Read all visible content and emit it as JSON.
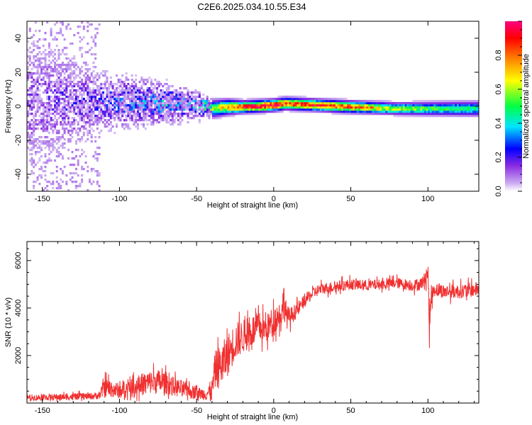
{
  "title": "C2E6.2025.034.10.55.E34",
  "chart_data": [
    {
      "type": "heatmap",
      "xlabel": "Height of straight line (km)",
      "ylabel": "Frequency (Hz)",
      "xlim": [
        -160,
        133
      ],
      "ylim": [
        -50,
        50
      ],
      "xticks": [
        -150,
        -100,
        -50,
        0,
        50,
        100
      ],
      "yticks": [
        -40,
        -20,
        0,
        20,
        40
      ],
      "colorbar": {
        "label": "Normalized spectral amplitude",
        "range": [
          0,
          1
        ],
        "ticks": [
          0.0,
          0.2,
          0.4,
          0.6,
          0.8
        ],
        "colormap": [
          "#ffffff",
          "#c8a8f0",
          "#8a2be2",
          "#0000ff",
          "#00e5ff",
          "#00ff44",
          "#ffff00",
          "#ff8000",
          "#ff0000",
          "#ff0080"
        ]
      },
      "band_profile": [
        {
          "x": -160,
          "center": 2,
          "width": 48,
          "amplitude": 0.12
        },
        {
          "x": -115,
          "center": 2,
          "width": 22,
          "amplitude": 0.18
        },
        {
          "x": -100,
          "center": 2,
          "width": 18,
          "amplitude": 0.25
        },
        {
          "x": -70,
          "center": 1,
          "width": 14,
          "amplitude": 0.3
        },
        {
          "x": -50,
          "center": 0,
          "width": 10,
          "amplitude": 0.28
        },
        {
          "x": -40,
          "center": -2,
          "width": 6,
          "amplitude": 0.55
        },
        {
          "x": -30,
          "center": -1,
          "width": 5,
          "amplitude": 0.8
        },
        {
          "x": -20,
          "center": -1,
          "width": 4,
          "amplitude": 0.95
        },
        {
          "x": 0,
          "center": 0,
          "width": 4,
          "amplitude": 1.0
        },
        {
          "x": 7,
          "center": 1,
          "width": 4,
          "amplitude": 0.9
        },
        {
          "x": 50,
          "center": -1,
          "width": 4,
          "amplitude": 0.85
        },
        {
          "x": 80,
          "center": -2,
          "width": 4,
          "amplitude": 0.6
        },
        {
          "x": 133,
          "center": -2,
          "width": 5,
          "amplitude": 0.45
        }
      ]
    },
    {
      "type": "line",
      "xlabel": "Height of straight line (km)",
      "ylabel": "SNR (10 * v/v)",
      "xlim": [
        -160,
        133
      ],
      "ylim": [
        0,
        6800
      ],
      "xticks": [
        -150,
        -100,
        -50,
        0,
        50,
        100
      ],
      "yticks": [
        2000,
        4000,
        6000
      ],
      "series": [
        {
          "color": "#f03030",
          "x": [
            -160,
            -140,
            -120,
            -113,
            -110,
            -105,
            -100,
            -95,
            -90,
            -85,
            -80,
            -75,
            -70,
            -65,
            -60,
            -55,
            -50,
            -45,
            -40,
            -38,
            -35,
            -30,
            -25,
            -20,
            -15,
            -10,
            -5,
            0,
            5,
            7,
            8,
            10,
            15,
            20,
            25,
            30,
            40,
            50,
            60,
            70,
            80,
            90,
            95,
            98,
            100,
            101,
            102,
            104,
            110,
            120,
            133
          ],
          "values": [
            230,
            250,
            280,
            320,
            650,
            600,
            500,
            580,
            650,
            800,
            880,
            900,
            850,
            700,
            600,
            500,
            420,
            380,
            500,
            1400,
            1500,
            2000,
            2600,
            2800,
            3000,
            3200,
            3100,
            3500,
            3800,
            4400,
            3700,
            3600,
            3900,
            4300,
            4600,
            4800,
            4900,
            5000,
            4950,
            5000,
            5050,
            4950,
            5000,
            5200,
            5600,
            3000,
            4400,
            4800,
            4700,
            4700,
            4800
          ],
          "noise": [
            120,
            140,
            140,
            160,
            420,
            380,
            320,
            360,
            420,
            480,
            500,
            520,
            480,
            400,
            380,
            320,
            260,
            260,
            500,
            800,
            900,
            900,
            800,
            700,
            700,
            650,
            600,
            600,
            560,
            900,
            600,
            400,
            320,
            260,
            260,
            240,
            240,
            230,
            230,
            220,
            230,
            240,
            260,
            300,
            500,
            700,
            400,
            300,
            300,
            300,
            320
          ]
        }
      ]
    }
  ]
}
